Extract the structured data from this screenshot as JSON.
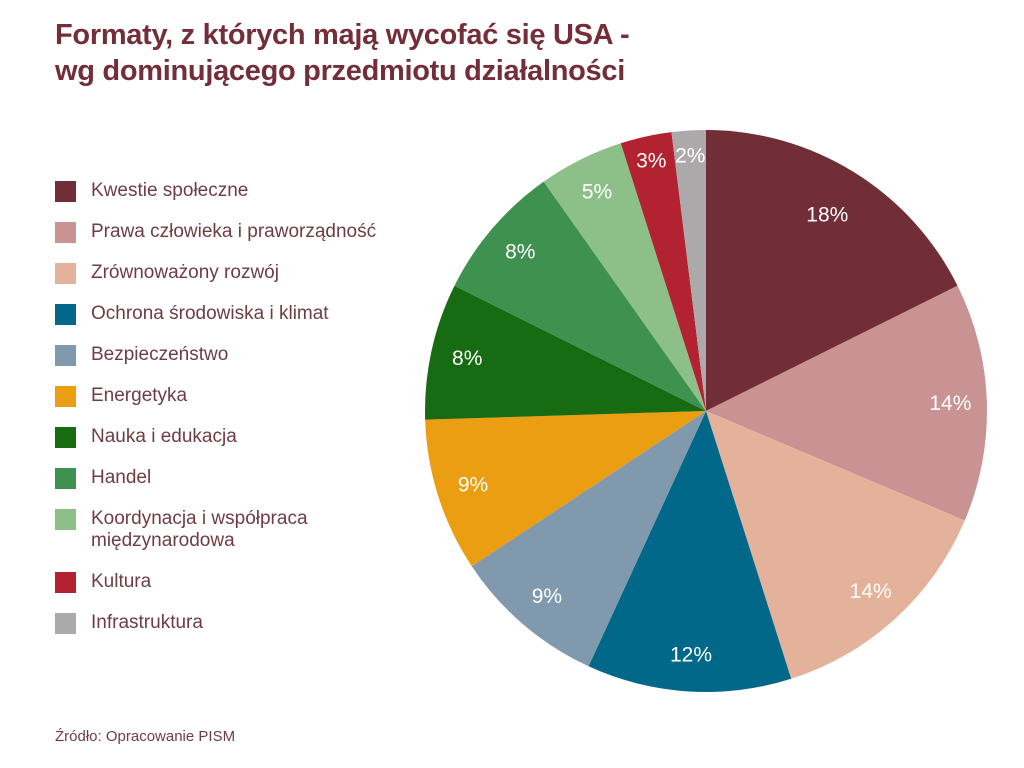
{
  "chart_data": {
    "type": "pie",
    "title": "Formaty, z których mają wycofać się USA - wg dominującego przedmiotu działalności",
    "title_lines": [
      "Formaty, z których mają wycofać się USA -",
      "wg dominującego przedmiotu działalności"
    ],
    "source": "Źródło: Opracowanie PISM",
    "legend_position": "left",
    "start_angle_deg": 0,
    "direction": "clockwise",
    "data_label_format": "percent",
    "slices": [
      {
        "label": "Kwestie społeczne",
        "value_pct": 18,
        "data_label": "18%",
        "color": "#712E37"
      },
      {
        "label": "Prawa człowieka i praworządność",
        "value_pct": 14,
        "data_label": "14%",
        "color": "#C99394"
      },
      {
        "label": "Zrównoważony rozwój",
        "value_pct": 14,
        "data_label": "14%",
        "color": "#E4B29B"
      },
      {
        "label": "Ochrona środowiska i klimat",
        "value_pct": 12,
        "data_label": "12%",
        "color": "#01688A"
      },
      {
        "label": "Bezpieczeństwo",
        "value_pct": 9,
        "data_label": "9%",
        "color": "#8099AC"
      },
      {
        "label": "Energetyka",
        "value_pct": 9,
        "data_label": "9%",
        "color": "#EB9E11"
      },
      {
        "label": "Nauka i edukacja",
        "value_pct": 8,
        "data_label": "8%",
        "color": "#176C13"
      },
      {
        "label": "Handel",
        "value_pct": 8,
        "data_label": "8%",
        "color": "#3F9150"
      },
      {
        "label": "Koordynacja i współpraca międzynarodowa",
        "value_pct": 5,
        "data_label": "5%",
        "color": "#8DC089"
      },
      {
        "label": "Kultura",
        "value_pct": 3,
        "data_label": "3%",
        "color": "#B22230"
      },
      {
        "label": "Infrastruktura",
        "value_pct": 2,
        "data_label": "2%",
        "color": "#ACA9AA"
      }
    ]
  },
  "colors": {
    "title_text": "#732E39",
    "legend_text": "#6F3C46",
    "source_text": "#6F3C46",
    "data_label_text": "#FFFFFF",
    "background": "#FFFFFF"
  }
}
